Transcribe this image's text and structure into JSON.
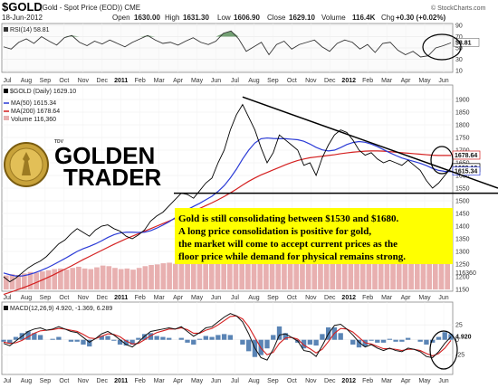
{
  "header": {
    "symbol": "$GOLD",
    "subtitle": "(Gold - Spot Price (EOD))  CME",
    "copyright": "© StockCharts.com",
    "date": "18-Jun-2012",
    "open_label": "Open",
    "open": "1630.00",
    "high_label": "High",
    "high": "1631.30",
    "low_label": "Low",
    "low": "1606.90",
    "close_label": "Close",
    "close": "1629.10",
    "volume_label": "Volume",
    "volume": "116.4K",
    "chg_label": "Chg",
    "chg": "+0.30 (+0.02%)"
  },
  "rsi_label": "RSI(14) 58.81",
  "price_labels": {
    "main": "$GOLD (Daily) 1629.10",
    "ma50": "MA(50) 1615.34",
    "ma200": "MA(200) 1678.64",
    "volume": "Volume 116,360"
  },
  "macd_label": "MACD(12,26,9) 4.920, -1.369, 6.289",
  "logo": {
    "brand": "GOLDEN",
    "brand2": "TRADER",
    "small": "TDV"
  },
  "annotation": [
    "Gold is still consolidating between $1530 and $1680.",
    "A long price consolidation is positive for gold,",
    "the market will come to accept current prices as the",
    "floor price while demand for physical remains strong."
  ],
  "colors": {
    "price": "#000000",
    "ma50": "#2b3bd6",
    "ma200": "#d42020",
    "volume": "#e8b0b0",
    "rsi": "#333333",
    "rsi_fill": "#3a7a3a",
    "macd": "#111111",
    "signal": "#d42020",
    "hist": "#3d6fa8",
    "note_bg": "#ffff00"
  },
  "chart_data": [
    {
      "type": "line",
      "title": "RSI(14)",
      "ylim": [
        10,
        90
      ],
      "yticks": [
        "90",
        "70",
        "50",
        "30",
        "10"
      ],
      "last_value_label": "58.81",
      "series": [
        {
          "name": "RSI(14)",
          "values": [
            52,
            48,
            60,
            66,
            58,
            70,
            62,
            55,
            68,
            72,
            60,
            54,
            62,
            57,
            64,
            58,
            52,
            60,
            66,
            72,
            64,
            58,
            60,
            55,
            62,
            68,
            60,
            56,
            62,
            76,
            80,
            66,
            44,
            52,
            60,
            38,
            56,
            62,
            48,
            56,
            60,
            64,
            52,
            44,
            58,
            64,
            60,
            48,
            56,
            42,
            58,
            60,
            46,
            38,
            44,
            34,
            36,
            50,
            54,
            59
          ]
        }
      ]
    },
    {
      "type": "line",
      "title": "$GOLD (Daily)",
      "ylim": [
        1150,
        1950
      ],
      "yticks": [
        "1900",
        "1850",
        "1800",
        "1750",
        "1700",
        "1650",
        "1600",
        "1550",
        "1500",
        "1450",
        "1400",
        "1350",
        "1300",
        "1250",
        "1200",
        "1150"
      ],
      "price_tags": [
        "1678.64",
        "1629.10",
        "1615.34"
      ],
      "x_labels": [
        "Jul",
        "Aug",
        "Sep",
        "Oct",
        "Nov",
        "Dec",
        "2011",
        "Feb",
        "Mar",
        "Apr",
        "May",
        "Jun",
        "Jul",
        "Aug",
        "Sep",
        "Oct",
        "Nov",
        "Dec",
        "2012",
        "Feb",
        "Mar",
        "Apr",
        "May",
        "Jun"
      ],
      "support": 1530,
      "resistance_start": 1910,
      "resistance_end": 1610,
      "series": [
        {
          "name": "$GOLD (Daily)",
          "values": [
            1200,
            1180,
            1195,
            1215,
            1235,
            1250,
            1262,
            1280,
            1305,
            1330,
            1345,
            1370,
            1390,
            1375,
            1360,
            1385,
            1400,
            1405,
            1390,
            1380,
            1360,
            1350,
            1365,
            1385,
            1420,
            1440,
            1455,
            1480,
            1505,
            1530,
            1525,
            1510,
            1540,
            1570,
            1590,
            1650,
            1700,
            1780,
            1840,
            1880,
            1830,
            1780,
            1710,
            1650,
            1690,
            1760,
            1740,
            1720,
            1700,
            1640,
            1650,
            1600,
            1670,
            1720,
            1760,
            1780,
            1770,
            1740,
            1700,
            1680,
            1690,
            1665,
            1650,
            1660,
            1650,
            1640,
            1660,
            1640,
            1620,
            1580,
            1550,
            1570,
            1600,
            1629
          ]
        },
        {
          "name": "MA(50)",
          "values": [
            1215,
            1208,
            1203,
            1203,
            1208,
            1215,
            1224,
            1234,
            1246,
            1259,
            1272,
            1286,
            1300,
            1311,
            1320,
            1330,
            1342,
            1355,
            1366,
            1373,
            1376,
            1376,
            1375,
            1376,
            1382,
            1392,
            1404,
            1417,
            1433,
            1449,
            1465,
            1478,
            1490,
            1504,
            1518,
            1537,
            1560,
            1590,
            1625,
            1665,
            1700,
            1728,
            1745,
            1748,
            1746,
            1745,
            1745,
            1743,
            1741,
            1735,
            1724,
            1711,
            1701,
            1697,
            1700,
            1710,
            1722,
            1730,
            1734,
            1731,
            1724,
            1714,
            1702,
            1690,
            1679,
            1669,
            1662,
            1655,
            1648,
            1639,
            1628,
            1620,
            1616,
            1615
          ]
        },
        {
          "name": "MA(200)",
          "values": [
            1130,
            1138,
            1146,
            1155,
            1164,
            1174,
            1184,
            1195,
            1206,
            1218,
            1230,
            1242,
            1255,
            1268,
            1280,
            1292,
            1304,
            1316,
            1328,
            1339,
            1350,
            1360,
            1370,
            1380,
            1390,
            1400,
            1410,
            1420,
            1430,
            1440,
            1450,
            1460,
            1470,
            1481,
            1492,
            1504,
            1517,
            1531,
            1546,
            1562,
            1577,
            1590,
            1602,
            1612,
            1622,
            1632,
            1642,
            1651,
            1659,
            1665,
            1670,
            1673,
            1676,
            1679,
            1682,
            1686,
            1689,
            1692,
            1694,
            1696,
            1697,
            1697,
            1696,
            1694,
            1692,
            1690,
            1688,
            1686,
            1684,
            1682,
            1680,
            1679,
            1679,
            1679
          ]
        }
      ]
    },
    {
      "type": "bar",
      "title": "Volume",
      "last_value_label": "116360",
      "values": [
        48,
        52,
        50,
        55,
        60,
        58,
        62,
        66,
        70,
        72,
        68,
        74,
        78,
        72,
        70,
        76,
        82,
        80,
        74,
        70,
        72,
        68,
        74,
        80,
        84,
        86,
        90,
        92,
        88,
        94,
        96,
        90,
        98,
        100,
        104,
        110,
        118,
        126,
        134,
        140,
        132,
        128,
        120,
        112,
        118,
        126,
        122,
        118,
        114,
        108,
        112,
        106,
        116,
        122,
        128,
        132,
        128,
        124,
        118,
        114,
        118,
        112,
        108,
        112,
        110,
        106,
        110,
        104,
        102,
        98,
        96,
        100,
        110,
        116
      ]
    },
    {
      "type": "line",
      "title": "MACD(12,26,9)",
      "yticks": [
        "25",
        "0",
        "-25"
      ],
      "ylim": [
        -55,
        45
      ],
      "last_value_label": "4.920",
      "x_labels": [
        "Jul",
        "Aug",
        "Sep",
        "Oct",
        "Nov",
        "Dec",
        "2011",
        "Feb",
        "Mar",
        "Apr",
        "May",
        "Jun",
        "Jul",
        "Aug",
        "Sep",
        "Oct",
        "Nov",
        "Dec",
        "2012",
        "Feb",
        "Mar",
        "Apr",
        "May",
        "Jun"
      ],
      "series": [
        {
          "name": "MACD",
          "values": [
            -6,
            -10,
            -2,
            6,
            14,
            18,
            20,
            16,
            18,
            22,
            18,
            14,
            12,
            4,
            -4,
            2,
            10,
            14,
            8,
            0,
            -8,
            -12,
            -4,
            6,
            14,
            16,
            18,
            20,
            18,
            22,
            14,
            6,
            12,
            20,
            22,
            30,
            38,
            44,
            40,
            30,
            10,
            -14,
            -30,
            -34,
            -16,
            8,
            10,
            4,
            -2,
            -18,
            -20,
            -28,
            -10,
            10,
            24,
            26,
            18,
            8,
            -4,
            -12,
            -8,
            -14,
            -18,
            -14,
            -18,
            -20,
            -14,
            -16,
            -20,
            -28,
            -30,
            -20,
            -6,
            5
          ]
        },
        {
          "name": "Signal",
          "values": [
            -4,
            -6,
            -5,
            -1,
            5,
            11,
            15,
            16,
            17,
            19,
            18,
            16,
            14,
            9,
            3,
            2,
            6,
            10,
            9,
            5,
            -2,
            -7,
            -6,
            0,
            7,
            12,
            15,
            18,
            18,
            20,
            17,
            11,
            11,
            16,
            19,
            25,
            32,
            39,
            40,
            35,
            22,
            4,
            -14,
            -25,
            -21,
            -6,
            3,
            4,
            1,
            -9,
            -15,
            -22,
            -16,
            -3,
            11,
            19,
            18,
            13,
            4,
            -5,
            -7,
            -11,
            -15,
            -15,
            -16,
            -18,
            -16,
            -16,
            -18,
            -23,
            -27,
            -23,
            -14,
            -1
          ]
        }
      ]
    }
  ]
}
